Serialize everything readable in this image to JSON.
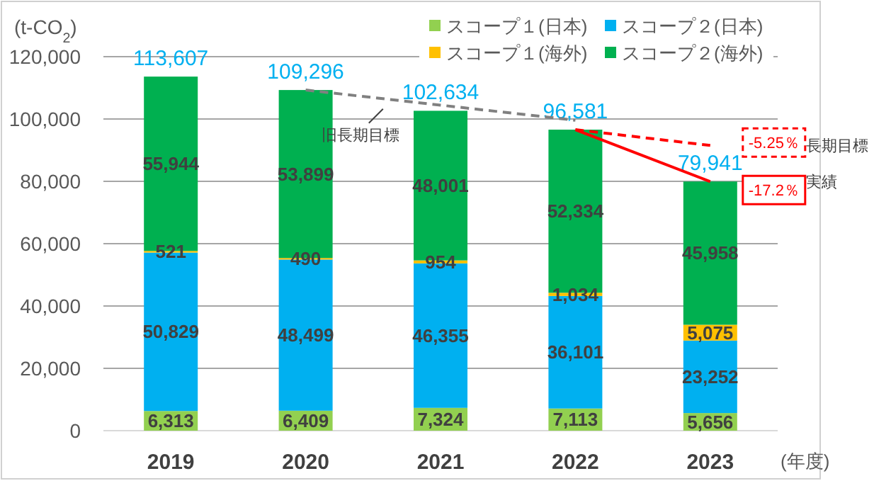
{
  "chart_data": {
    "type": "bar",
    "stacked": true,
    "ylabel": "(t-CO$_{2}$)",
    "xlabel": "(年度)",
    "categories": [
      "2019",
      "2020",
      "2021",
      "2022",
      "2023"
    ],
    "series": [
      {
        "name": "スコープ１(日本)",
        "color": "#92d050",
        "values": [
          6313,
          6409,
          7324,
          7113,
          5656
        ],
        "value_labels": [
          "6,313",
          "6,409",
          "7,324",
          "7,113",
          "5,656"
        ]
      },
      {
        "name": "スコープ２(日本)",
        "color": "#00b0f0",
        "values": [
          50829,
          48499,
          46355,
          36101,
          23252
        ],
        "value_labels": [
          "50,829",
          "48,499",
          "46,355",
          "36,101",
          "23,252"
        ]
      },
      {
        "name": "スコープ１(海外)",
        "color": "#ffc000",
        "values": [
          521,
          490,
          954,
          1034,
          5075
        ],
        "value_labels": [
          "521",
          "490",
          "954",
          "1,034",
          "5,075"
        ]
      },
      {
        "name": "スコープ２(海外)",
        "color": "#00b050",
        "values": [
          55944,
          53899,
          48001,
          52334,
          45958
        ],
        "value_labels": [
          "55,944",
          "53,899",
          "48,001",
          "52,334",
          "45,958"
        ]
      },
      {
        "name": "旧長期目標",
        "type": "line",
        "color": "#808080",
        "line_style": "dashed",
        "values": [
          null,
          109296,
          104448,
          99600,
          null
        ]
      },
      {
        "name": "長期目標",
        "type": "line",
        "color": "#ff0000",
        "line_style": "dashed",
        "values": [
          null,
          null,
          null,
          96581,
          91511
        ]
      },
      {
        "name": "実績",
        "type": "line",
        "color": "#ff0000",
        "line_style": "solid",
        "values": [
          null,
          null,
          null,
          96581,
          79941
        ]
      }
    ],
    "totals": [
      "113,607",
      "109,296",
      "102,634",
      "96,581",
      "79,941"
    ],
    "annotations": [
      {
        "text": "-5.25％",
        "x": "2023",
        "y": 91511
      },
      {
        "text": "-17.2％",
        "x": "2023",
        "y": 79941
      }
    ],
    "ylim": [
      0,
      120000
    ],
    "yticks": [
      {
        "value": 0,
        "label": "0"
      },
      {
        "value": 20000,
        "label": "20,000"
      },
      {
        "value": 40000,
        "label": "40,000"
      },
      {
        "value": 60000,
        "label": "60,000"
      },
      {
        "value": 80000,
        "label": "80,000"
      },
      {
        "value": 100000,
        "label": "100,000"
      },
      {
        "value": 120000,
        "label": "120,000"
      }
    ],
    "grid": "y",
    "legend": "top right"
  }
}
